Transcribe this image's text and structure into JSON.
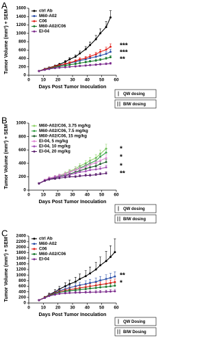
{
  "chart_data": [
    {
      "type": "line",
      "panel_label": "A",
      "y_label": "Tumor Volume (mm³) + SEM",
      "x_label": "Days Post Tumor Inoculation",
      "xlim": [
        0,
        60
      ],
      "xticks": [
        0,
        10,
        20,
        30,
        40,
        50,
        60
      ],
      "ylim": [
        0,
        1600
      ],
      "yticks": [
        0,
        200,
        400,
        600,
        800,
        1000,
        1200,
        1400,
        1600
      ],
      "x": [
        7,
        11,
        14,
        18,
        21,
        25,
        28,
        32,
        35,
        39,
        42,
        46,
        49,
        53,
        56
      ],
      "series": [
        {
          "name": "ctrl Ab",
          "color": "#000000",
          "values": [
            100,
            150,
            180,
            220,
            260,
            320,
            380,
            440,
            520,
            620,
            720,
            860,
            1000,
            1150,
            1380
          ],
          "errors": [
            10,
            15,
            20,
            25,
            30,
            35,
            40,
            45,
            55,
            65,
            75,
            90,
            110,
            130,
            160
          ]
        },
        {
          "name": "M60-A02",
          "color": "#2b4fa8",
          "values": [
            100,
            140,
            170,
            200,
            230,
            260,
            290,
            320,
            350,
            380,
            410,
            440,
            470,
            510,
            560
          ],
          "errors": [
            10,
            12,
            15,
            18,
            20,
            22,
            25,
            28,
            30,
            35,
            40,
            45,
            50,
            55,
            60
          ]
        },
        {
          "name": "C06",
          "color": "#e0211b",
          "values": [
            100,
            140,
            170,
            210,
            240,
            270,
            300,
            340,
            380,
            410,
            450,
            500,
            560,
            610,
            680
          ],
          "errors": [
            10,
            12,
            15,
            18,
            20,
            22,
            25,
            30,
            35,
            40,
            45,
            50,
            55,
            60,
            70
          ]
        },
        {
          "name": "M60-A02/C06",
          "color": "#1a7a2e",
          "values": [
            100,
            130,
            160,
            190,
            210,
            230,
            250,
            270,
            290,
            310,
            330,
            350,
            370,
            400,
            430
          ],
          "errors": [
            10,
            10,
            12,
            15,
            15,
            18,
            20,
            20,
            22,
            25,
            25,
            28,
            30,
            32,
            35
          ]
        },
        {
          "name": "EI-04",
          "color": "#7b2a8c",
          "values": [
            100,
            130,
            150,
            170,
            180,
            190,
            200,
            210,
            220,
            230,
            240,
            250,
            260,
            270,
            280
          ],
          "errors": [
            10,
            10,
            12,
            12,
            15,
            15,
            15,
            18,
            18,
            20,
            20,
            22,
            22,
            25,
            25
          ]
        }
      ],
      "annotations": [
        "***",
        "***",
        "**"
      ],
      "dosing": [
        "QW dosing",
        "BIW dosing"
      ]
    },
    {
      "type": "line",
      "panel_label": "B",
      "y_label": "Tumor Volume (mm³) + SEM",
      "x_label": "Days Post Tumor Inoculation",
      "xlim": [
        0,
        60
      ],
      "xticks": [
        0,
        10,
        20,
        30,
        40,
        50,
        60
      ],
      "ylim": [
        0,
        1000
      ],
      "yticks": [
        0,
        200,
        400,
        600,
        800,
        1000
      ],
      "x": [
        7,
        11,
        14,
        18,
        21,
        25,
        28,
        32,
        35,
        39,
        42,
        46,
        49,
        53
      ],
      "series": [
        {
          "name": "M60-A02/C06, 3.75 mg/kg",
          "color": "#8fd16a",
          "values": [
            100,
            150,
            180,
            200,
            220,
            250,
            280,
            320,
            360,
            400,
            440,
            480,
            540,
            620
          ],
          "errors": [
            10,
            15,
            18,
            20,
            22,
            25,
            28,
            30,
            35,
            40,
            45,
            50,
            55,
            65
          ]
        },
        {
          "name": "M60-A02/C06, 7.5 mg/kg",
          "color": "#3aa34a",
          "values": [
            100,
            150,
            170,
            190,
            210,
            240,
            270,
            300,
            330,
            370,
            400,
            440,
            500,
            560
          ],
          "errors": [
            10,
            15,
            15,
            18,
            20,
            22,
            25,
            28,
            30,
            35,
            40,
            45,
            50,
            55
          ]
        },
        {
          "name": "M60-A02/C06, 15 mg/kg",
          "color": "#1d5e2a",
          "values": [
            100,
            140,
            160,
            180,
            200,
            220,
            240,
            270,
            290,
            320,
            340,
            360,
            390,
            420
          ],
          "errors": [
            10,
            12,
            15,
            15,
            18,
            20,
            22,
            25,
            28,
            30,
            32,
            35,
            38,
            40
          ]
        },
        {
          "name": "EI-04, 5 mg/kg",
          "color": "#e08ad6",
          "values": [
            100,
            150,
            180,
            200,
            220,
            240,
            270,
            300,
            320,
            350,
            380,
            410,
            440,
            480
          ],
          "errors": [
            10,
            15,
            18,
            20,
            20,
            22,
            25,
            28,
            30,
            35,
            38,
            40,
            45,
            50
          ]
        },
        {
          "name": "EI-04, 10 mg/kg",
          "color": "#a24fb4",
          "values": [
            100,
            140,
            170,
            190,
            200,
            210,
            230,
            250,
            270,
            280,
            300,
            310,
            320,
            340
          ],
          "errors": [
            10,
            12,
            15,
            18,
            18,
            20,
            20,
            22,
            25,
            25,
            28,
            30,
            30,
            32
          ]
        },
        {
          "name": "EI-04, 20 mg/kg",
          "color": "#5a1e6e",
          "values": [
            100,
            140,
            160,
            170,
            180,
            190,
            200,
            200,
            210,
            220,
            220,
            230,
            240,
            250
          ],
          "errors": [
            10,
            12,
            15,
            15,
            15,
            18,
            18,
            18,
            20,
            20,
            20,
            22,
            22,
            25
          ]
        }
      ],
      "annotations": [
        "*",
        "*",
        "*",
        "**"
      ],
      "dosing": [
        "QW dosing",
        "BIW dosing"
      ]
    },
    {
      "type": "line",
      "panel_label": "C",
      "y_label": "Tumor Volume (mm³) + SEM",
      "x_label": "Days Post Tumor Inoculation",
      "xlim": [
        0,
        60
      ],
      "xticks": [
        0,
        10,
        20,
        30,
        40,
        50,
        60
      ],
      "ylim": [
        0,
        2400
      ],
      "yticks": [
        0,
        200,
        400,
        600,
        800,
        1000,
        1200,
        1400,
        1600,
        1800,
        2000,
        2200,
        2400
      ],
      "x": [
        7,
        11,
        14,
        18,
        21,
        25,
        28,
        32,
        35,
        39,
        42,
        46,
        49,
        53,
        56,
        59
      ],
      "series": [
        {
          "name": "ctrl Ab",
          "color": "#000000",
          "values": [
            100,
            200,
            300,
            400,
            500,
            600,
            680,
            760,
            860,
            960,
            1060,
            1200,
            1350,
            1500,
            1650,
            1820
          ],
          "errors": [
            20,
            40,
            60,
            80,
            100,
            120,
            140,
            160,
            180,
            200,
            230,
            260,
            300,
            350,
            400,
            480
          ]
        },
        {
          "name": "M60-A02",
          "color": "#2b4fa8",
          "values": [
            100,
            200,
            290,
            370,
            440,
            500,
            550,
            600,
            640,
            680,
            720,
            760,
            810,
            860,
            900,
            950
          ],
          "errors": [
            20,
            30,
            40,
            50,
            60,
            70,
            80,
            90,
            100,
            110,
            120,
            130,
            140,
            150,
            160,
            170
          ]
        },
        {
          "name": "C06",
          "color": "#e0211b",
          "values": [
            100,
            200,
            280,
            350,
            410,
            450,
            480,
            510,
            540,
            570,
            600,
            630,
            660,
            690,
            720,
            750
          ],
          "errors": [
            20,
            30,
            40,
            50,
            55,
            60,
            65,
            70,
            75,
            80,
            85,
            90,
            95,
            100,
            105,
            110
          ]
        },
        {
          "name": "M60-A02/C06",
          "color": "#1a7a2e",
          "values": [
            100,
            190,
            270,
            330,
            380,
            410,
            440,
            460,
            480,
            500,
            520,
            540,
            560,
            580,
            600,
            620
          ],
          "errors": [
            15,
            25,
            35,
            40,
            45,
            50,
            55,
            55,
            60,
            60,
            65,
            70,
            75,
            80,
            85,
            90
          ]
        },
        {
          "name": "EI-04",
          "color": "#7b2a8c",
          "values": [
            100,
            180,
            250,
            300,
            330,
            350,
            360,
            370,
            375,
            380,
            385,
            390,
            395,
            400,
            410,
            420
          ],
          "errors": [
            15,
            25,
            30,
            35,
            40,
            40,
            45,
            45,
            50,
            50,
            55,
            55,
            60,
            60,
            65,
            70
          ]
        }
      ],
      "annotations": [
        "**",
        "*"
      ],
      "dosing": [
        "QW Dosing",
        "BIW Dosing"
      ]
    }
  ]
}
